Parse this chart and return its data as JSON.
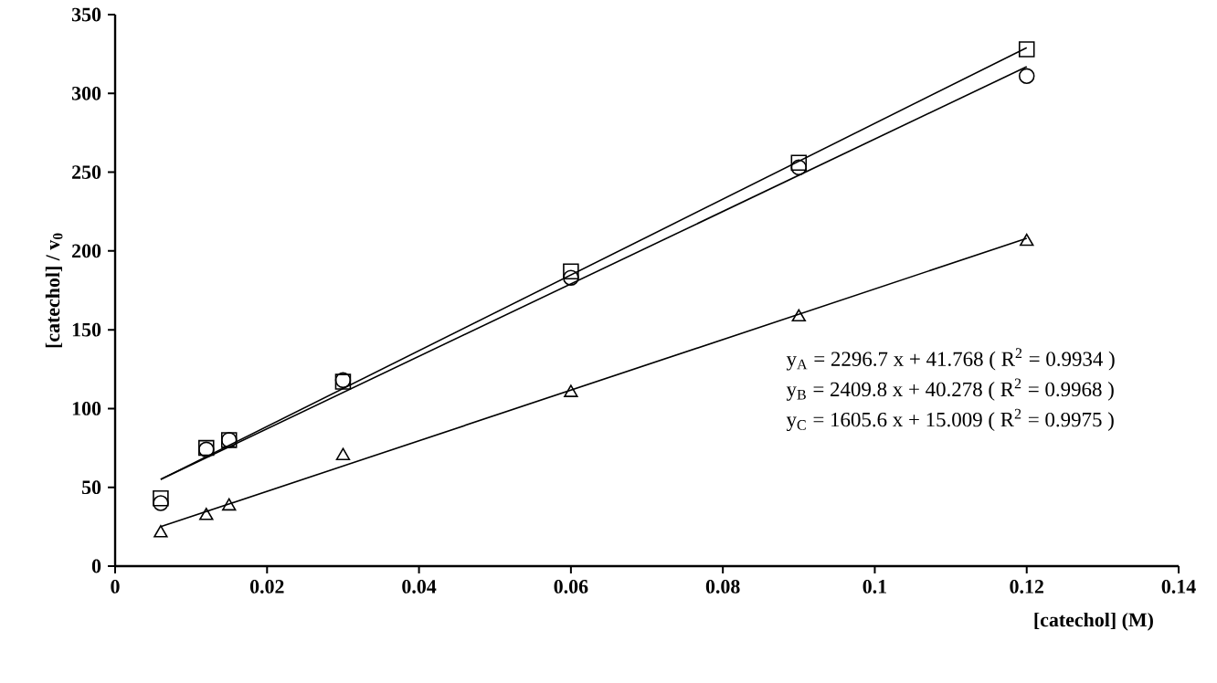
{
  "chart_data": {
    "type": "scatter",
    "xlabel": "[catechol] (M)",
    "ylabel": "[catechol] / v$_{0}$",
    "xlim": [
      0,
      0.14
    ],
    "xticks": [
      0,
      0.02,
      0.04,
      0.06,
      0.08,
      0.1,
      0.12,
      0.14
    ],
    "ylim": [
      0,
      350
    ],
    "yticks": [
      0,
      50,
      100,
      150,
      200,
      250,
      300,
      350
    ],
    "grid": false,
    "series": [
      {
        "marker": "circle",
        "color": "#000000",
        "x": [
          0.006,
          0.012,
          0.015,
          0.03,
          0.06,
          0.09,
          0.12
        ],
        "values": [
          40,
          74,
          80,
          118,
          183,
          253,
          311
        ]
      },
      {
        "marker": "square",
        "color": "#000000",
        "x": [
          0.006,
          0.012,
          0.015,
          0.03,
          0.06,
          0.09,
          0.12
        ],
        "values": [
          43,
          75,
          80,
          117,
          187,
          256,
          328
        ]
      },
      {
        "marker": "triangle",
        "color": "#000000",
        "x": [
          0.006,
          0.012,
          0.015,
          0.03,
          0.06,
          0.09,
          0.12
        ],
        "values": [
          21,
          32,
          38,
          70,
          110,
          158,
          206
        ]
      },
      {
        "type": "line",
        "marker": "none",
        "color": "#000000",
        "x": [
          0.006,
          0.12
        ],
        "values": [
          55,
          317
        ]
      },
      {
        "type": "line",
        "marker": "none",
        "color": "#000000",
        "x": [
          0.006,
          0.12
        ],
        "values": [
          55,
          329
        ]
      },
      {
        "type": "line",
        "marker": "none",
        "color": "#000000",
        "x": [
          0.006,
          0.12
        ],
        "values": [
          25,
          208
        ]
      }
    ],
    "annotations": [
      "y$_{A}$ = 2296.7 x + 41.768   ( R$^{2}$ = 0.9934 )",
      "y$_{B}$ = 2409.8 x + 40.278   ( R$^{2}$ = 0.9968 )",
      "y$_{C}$ = 1605.6 x + 15.009   ( R$^{2}$ = 0.9975 )"
    ]
  }
}
